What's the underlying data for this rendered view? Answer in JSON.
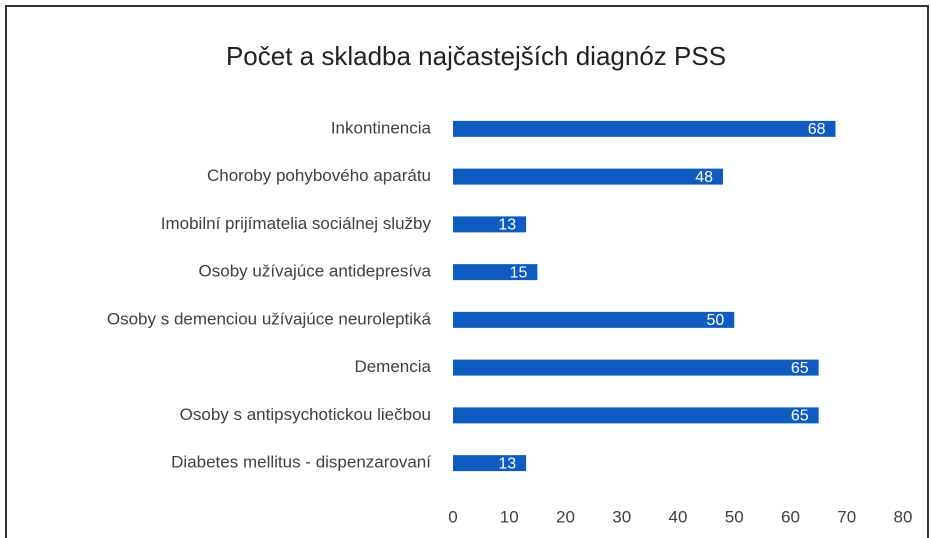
{
  "chart_data": {
    "type": "bar",
    "orientation": "horizontal",
    "title": "Počet a skladba najčastejších diagnóz PSS",
    "categories": [
      "Inkontinencia",
      "Choroby pohybového aparátu",
      "Imobilní prijímatelia sociálnej služby",
      "Osoby užívajúce antidepresíva",
      "Osoby s demenciou užívajúce neuroleptiká",
      "Demencia",
      "Osoby s antipsychotickou liečbou",
      "Diabetes mellitus - dispenzarovaní"
    ],
    "values": [
      68,
      48,
      13,
      15,
      50,
      65,
      65,
      13
    ],
    "color": "#0f5cc0",
    "xlim": [
      0,
      80
    ],
    "xticks": [
      0,
      10,
      20,
      30,
      40,
      50,
      60,
      70,
      80
    ],
    "grid": false,
    "data_labels": true
  }
}
